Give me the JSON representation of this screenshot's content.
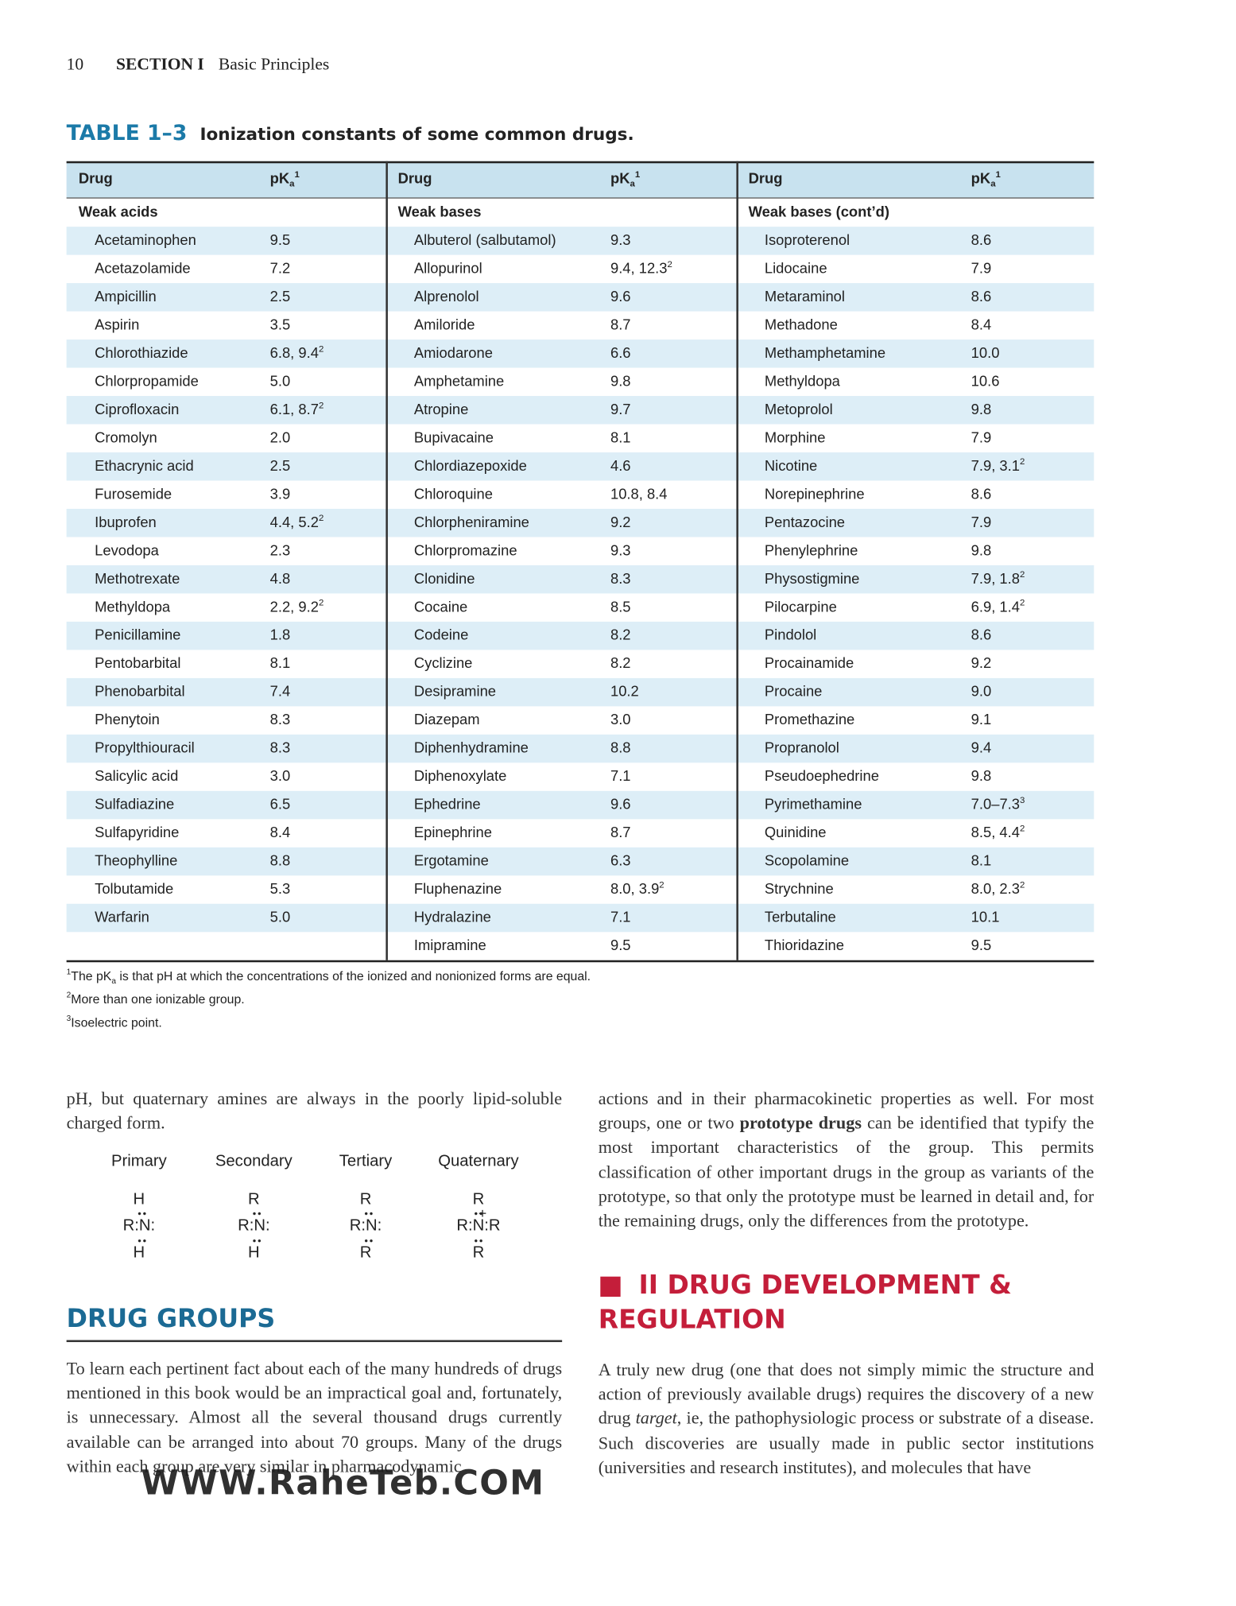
{
  "header": {
    "page": "10",
    "section": "SECTION I",
    "title": "Basic Principles"
  },
  "table": {
    "label": "TABLE 1–3",
    "caption": "Ionization constants of some common drugs.",
    "head": {
      "drug": "Drug",
      "pk": "pK",
      "pk_sub": "a",
      "pk_sup": "1"
    },
    "columns": [
      {
        "group": "Weak acids",
        "rows": [
          [
            "Acetaminophen",
            "9.5"
          ],
          [
            "Acetazolamide",
            "7.2"
          ],
          [
            "Ampicillin",
            "2.5"
          ],
          [
            "Aspirin",
            "3.5"
          ],
          [
            "Chlorothiazide",
            "6.8, 9.4",
            "2"
          ],
          [
            "Chlorpropamide",
            "5.0"
          ],
          [
            "Ciprofloxacin",
            "6.1, 8.7",
            "2"
          ],
          [
            "Cromolyn",
            "2.0"
          ],
          [
            "Ethacrynic acid",
            "2.5"
          ],
          [
            "Furosemide",
            "3.9"
          ],
          [
            "Ibuprofen",
            "4.4, 5.2",
            "2"
          ],
          [
            "Levodopa",
            "2.3"
          ],
          [
            "Methotrexate",
            "4.8"
          ],
          [
            "Methyldopa",
            "2.2, 9.2",
            "2"
          ],
          [
            "Penicillamine",
            "1.8"
          ],
          [
            "Pentobarbital",
            "8.1"
          ],
          [
            "Phenobarbital",
            "7.4"
          ],
          [
            "Phenytoin",
            "8.3"
          ],
          [
            "Propylthiouracil",
            "8.3"
          ],
          [
            "Salicylic acid",
            "3.0"
          ],
          [
            "Sulfadiazine",
            "6.5"
          ],
          [
            "Sulfapyridine",
            "8.4"
          ],
          [
            "Theophylline",
            "8.8"
          ],
          [
            "Tolbutamide",
            "5.3"
          ],
          [
            "Warfarin",
            "5.0"
          ]
        ]
      },
      {
        "group": "Weak bases",
        "rows": [
          [
            "Albuterol (salbutamol)",
            "9.3"
          ],
          [
            "Allopurinol",
            "9.4, 12.3",
            "2"
          ],
          [
            "Alprenolol",
            "9.6"
          ],
          [
            "Amiloride",
            "8.7"
          ],
          [
            "Amiodarone",
            "6.6"
          ],
          [
            "Amphetamine",
            "9.8"
          ],
          [
            "Atropine",
            "9.7"
          ],
          [
            "Bupivacaine",
            "8.1"
          ],
          [
            "Chlordiazepoxide",
            "4.6"
          ],
          [
            "Chloroquine",
            "10.8, 8.4"
          ],
          [
            "Chlorpheniramine",
            "9.2"
          ],
          [
            "Chlorpromazine",
            "9.3"
          ],
          [
            "Clonidine",
            "8.3"
          ],
          [
            "Cocaine",
            "8.5"
          ],
          [
            "Codeine",
            "8.2"
          ],
          [
            "Cyclizine",
            "8.2"
          ],
          [
            "Desipramine",
            "10.2"
          ],
          [
            "Diazepam",
            "3.0"
          ],
          [
            "Diphenhydramine",
            "8.8"
          ],
          [
            "Diphenoxylate",
            "7.1"
          ],
          [
            "Ephedrine",
            "9.6"
          ],
          [
            "Epinephrine",
            "8.7"
          ],
          [
            "Ergotamine",
            "6.3"
          ],
          [
            "Fluphenazine",
            "8.0, 3.9",
            "2"
          ],
          [
            "Hydralazine",
            "7.1"
          ],
          [
            "Imipramine",
            "9.5"
          ]
        ]
      },
      {
        "group": "Weak bases (cont’d)",
        "rows": [
          [
            "Isoproterenol",
            "8.6"
          ],
          [
            "Lidocaine",
            "7.9"
          ],
          [
            "Metaraminol",
            "8.6"
          ],
          [
            "Methadone",
            "8.4"
          ],
          [
            "Methamphetamine",
            "10.0"
          ],
          [
            "Methyldopa",
            "10.6"
          ],
          [
            "Metoprolol",
            "9.8"
          ],
          [
            "Morphine",
            "7.9"
          ],
          [
            "Nicotine",
            "7.9, 3.1",
            "2"
          ],
          [
            "Norepinephrine",
            "8.6"
          ],
          [
            "Pentazocine",
            "7.9"
          ],
          [
            "Phenylephrine",
            "9.8"
          ],
          [
            "Physostigmine",
            "7.9, 1.8",
            "2"
          ],
          [
            "Pilocarpine",
            "6.9, 1.4",
            "2"
          ],
          [
            "Pindolol",
            "8.6"
          ],
          [
            "Procainamide",
            "9.2"
          ],
          [
            "Procaine",
            "9.0"
          ],
          [
            "Promethazine",
            "9.1"
          ],
          [
            "Propranolol",
            "9.4"
          ],
          [
            "Pseudoephedrine",
            "9.8"
          ],
          [
            "Pyrimethamine",
            "7.0–7.3",
            "3"
          ],
          [
            "Quinidine",
            "8.5, 4.4",
            "2"
          ],
          [
            "Scopolamine",
            "8.1"
          ],
          [
            "Strychnine",
            "8.0, 2.3",
            "2"
          ],
          [
            "Terbutaline",
            "10.1"
          ],
          [
            "Thioridazine",
            "9.5"
          ]
        ]
      }
    ],
    "footnotes": [
      {
        "mark": "1",
        "text": "The pK",
        "sub": "a",
        "rest": " is that pH at which the concentrations of the ionized and nonionized forms are equal."
      },
      {
        "mark": "2",
        "text": "More than one ionizable group."
      },
      {
        "mark": "3",
        "text": "Isoelectric point."
      }
    ]
  },
  "left": {
    "intro": "pH, but quaternary amines are always in the poorly lipid-soluble charged form.",
    "amines": [
      {
        "label": "Primary",
        "top": "H",
        "mid": "R:N:",
        "bottom": "H"
      },
      {
        "label": "Secondary",
        "top": "R",
        "mid": "R:N:",
        "bottom": "H"
      },
      {
        "label": "Tertiary",
        "top": "R",
        "mid": "R:N:",
        "bottom": "R"
      },
      {
        "label": "Quaternary",
        "top": "R",
        "mid": "R:N:R",
        "bottom": "R",
        "charge": "+"
      }
    ],
    "heading": "DRUG GROUPS",
    "paragraph": "To learn each pertinent fact about each of the many hundreds of drugs mentioned in this book would be an impractical goal and, fortunately, is unnecessary. Almost all the several thousand drugs currently available can be arranged into about 70 groups. Many of the drugs within each group are very similar in pharmacodynamic"
  },
  "right": {
    "paragraph1": [
      {
        "t": "actions and in their pharmacokinetic properties as well. For most groups, one or two "
      },
      {
        "t": "prototype drugs",
        "b": true
      },
      {
        "t": " can be identified that typify the most important characteristics of the group. This permits classification of other important drugs in the group as variants of the prototype, so that only the prototype must be learned in detail and, for the remaining drugs, only the differences from the prototype."
      }
    ],
    "heading": "II DRUG DEVELOPMENT & REGULATION",
    "paragraph2": [
      {
        "t": "A truly new drug (one that does not simply mimic the structure and action of previously available drugs) requires the discovery of a new drug "
      },
      {
        "t": "target",
        "i": true
      },
      {
        "t": ", ie, the pathophysiologic process or substrate of a disease. Such discoveries are usually made in public sector institutions (universities and research institutes), and molecules that have"
      }
    ]
  },
  "watermark": "WWW.RaheTeb.COM"
}
